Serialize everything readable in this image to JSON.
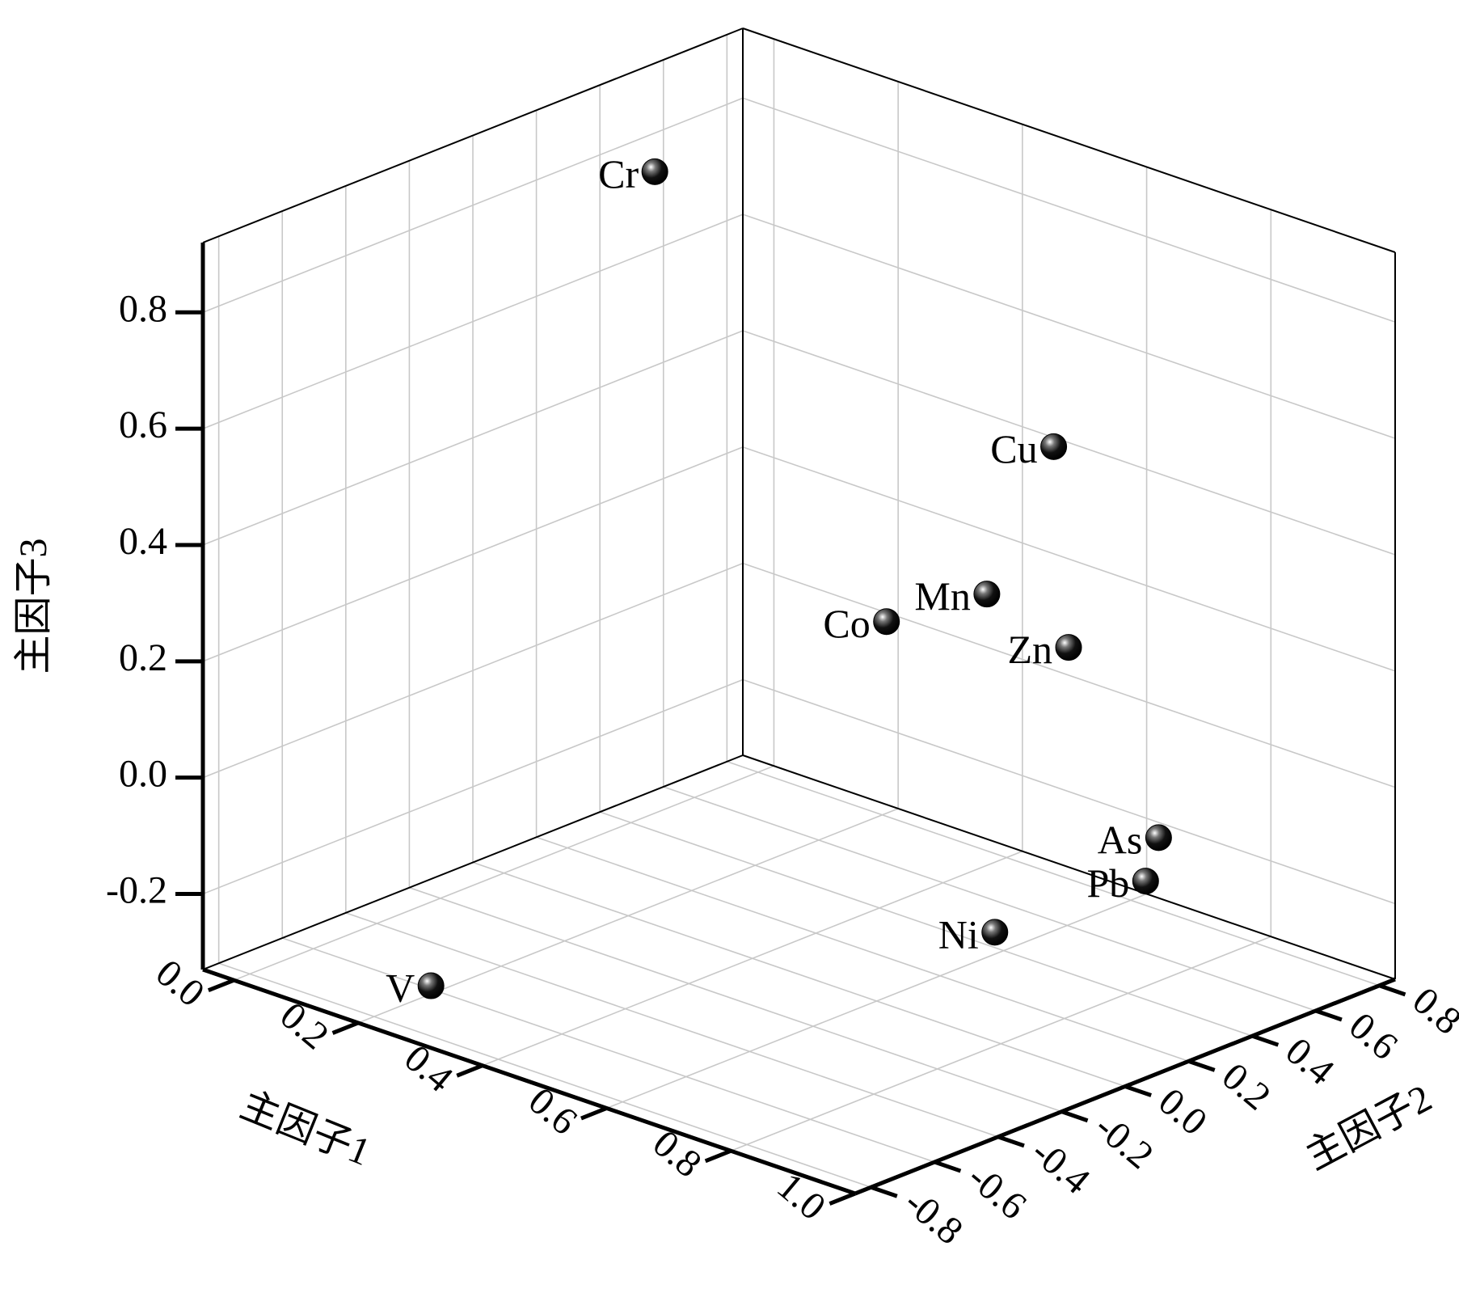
{
  "chart_data": {
    "type": "scatter3d",
    "xlabel": "主因子1",
    "ylabel": "主因子2",
    "zlabel": "主因子3",
    "labels": [
      "Cr",
      "Cu",
      "Mn",
      "Co",
      "Zn",
      "As",
      "Pb",
      "Ni",
      "V"
    ],
    "x": [
      0.11,
      0.66,
      0.67,
      0.58,
      0.73,
      0.88,
      0.9,
      0.78,
      0.22
    ],
    "y": [
      0.26,
      0.44,
      0.21,
      0.07,
      0.35,
      0.34,
      0.26,
      0.02,
      -0.66
    ],
    "z": [
      0.86,
      0.55,
      0.35,
      0.3,
      0.25,
      -0.02,
      -0.07,
      -0.15,
      -0.3
    ],
    "color": "#000000",
    "xlim": [
      -0.05,
      1.0
    ],
    "ylim": [
      -0.85,
      0.85
    ],
    "zlim": [
      -0.33,
      0.92
    ],
    "xticks": [
      {
        "value": 0,
        "label": "0.0"
      },
      0.2,
      0.4,
      0.6,
      0.8,
      {
        "value": 1,
        "label": "1.0"
      }
    ],
    "yticks": [
      -0.8,
      -0.6,
      -0.4,
      -0.2,
      {
        "value": 0,
        "label": "0.0"
      },
      0.2,
      0.4,
      0.6,
      0.8
    ],
    "zticks": [
      -0.2,
      {
        "value": 0,
        "label": "0.0"
      },
      0.2,
      0.4,
      0.6,
      0.8
    ],
    "grid": true
  }
}
